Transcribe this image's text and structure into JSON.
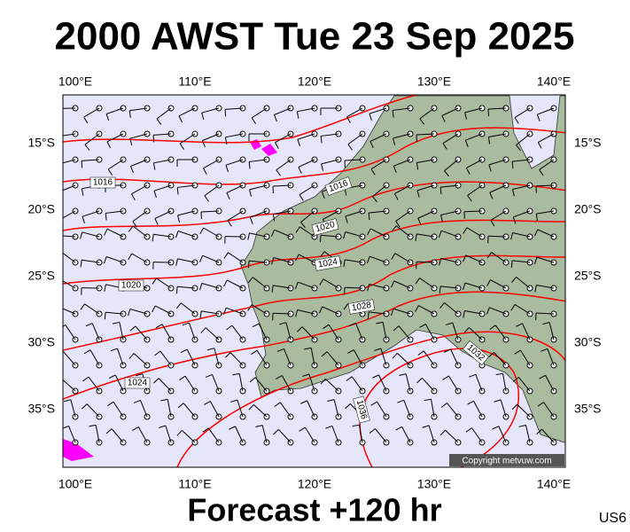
{
  "header": {
    "title": "2000 AWST Tue 23 Sep 2025"
  },
  "footer": {
    "forecast": "Forecast +120 hr",
    "code": "US6"
  },
  "map": {
    "lon_labels": [
      "100°E",
      "110°E",
      "120°E",
      "130°E",
      "140°E"
    ],
    "lat_labels": [
      "15°S",
      "20°S",
      "25°S",
      "30°S",
      "35°S"
    ],
    "copyright": "Copyright metvuw.com",
    "isobar_labels": [
      "1016",
      "1016",
      "1020",
      "1024",
      "1020",
      "1028",
      "1024",
      "1032",
      "1036"
    ]
  }
}
